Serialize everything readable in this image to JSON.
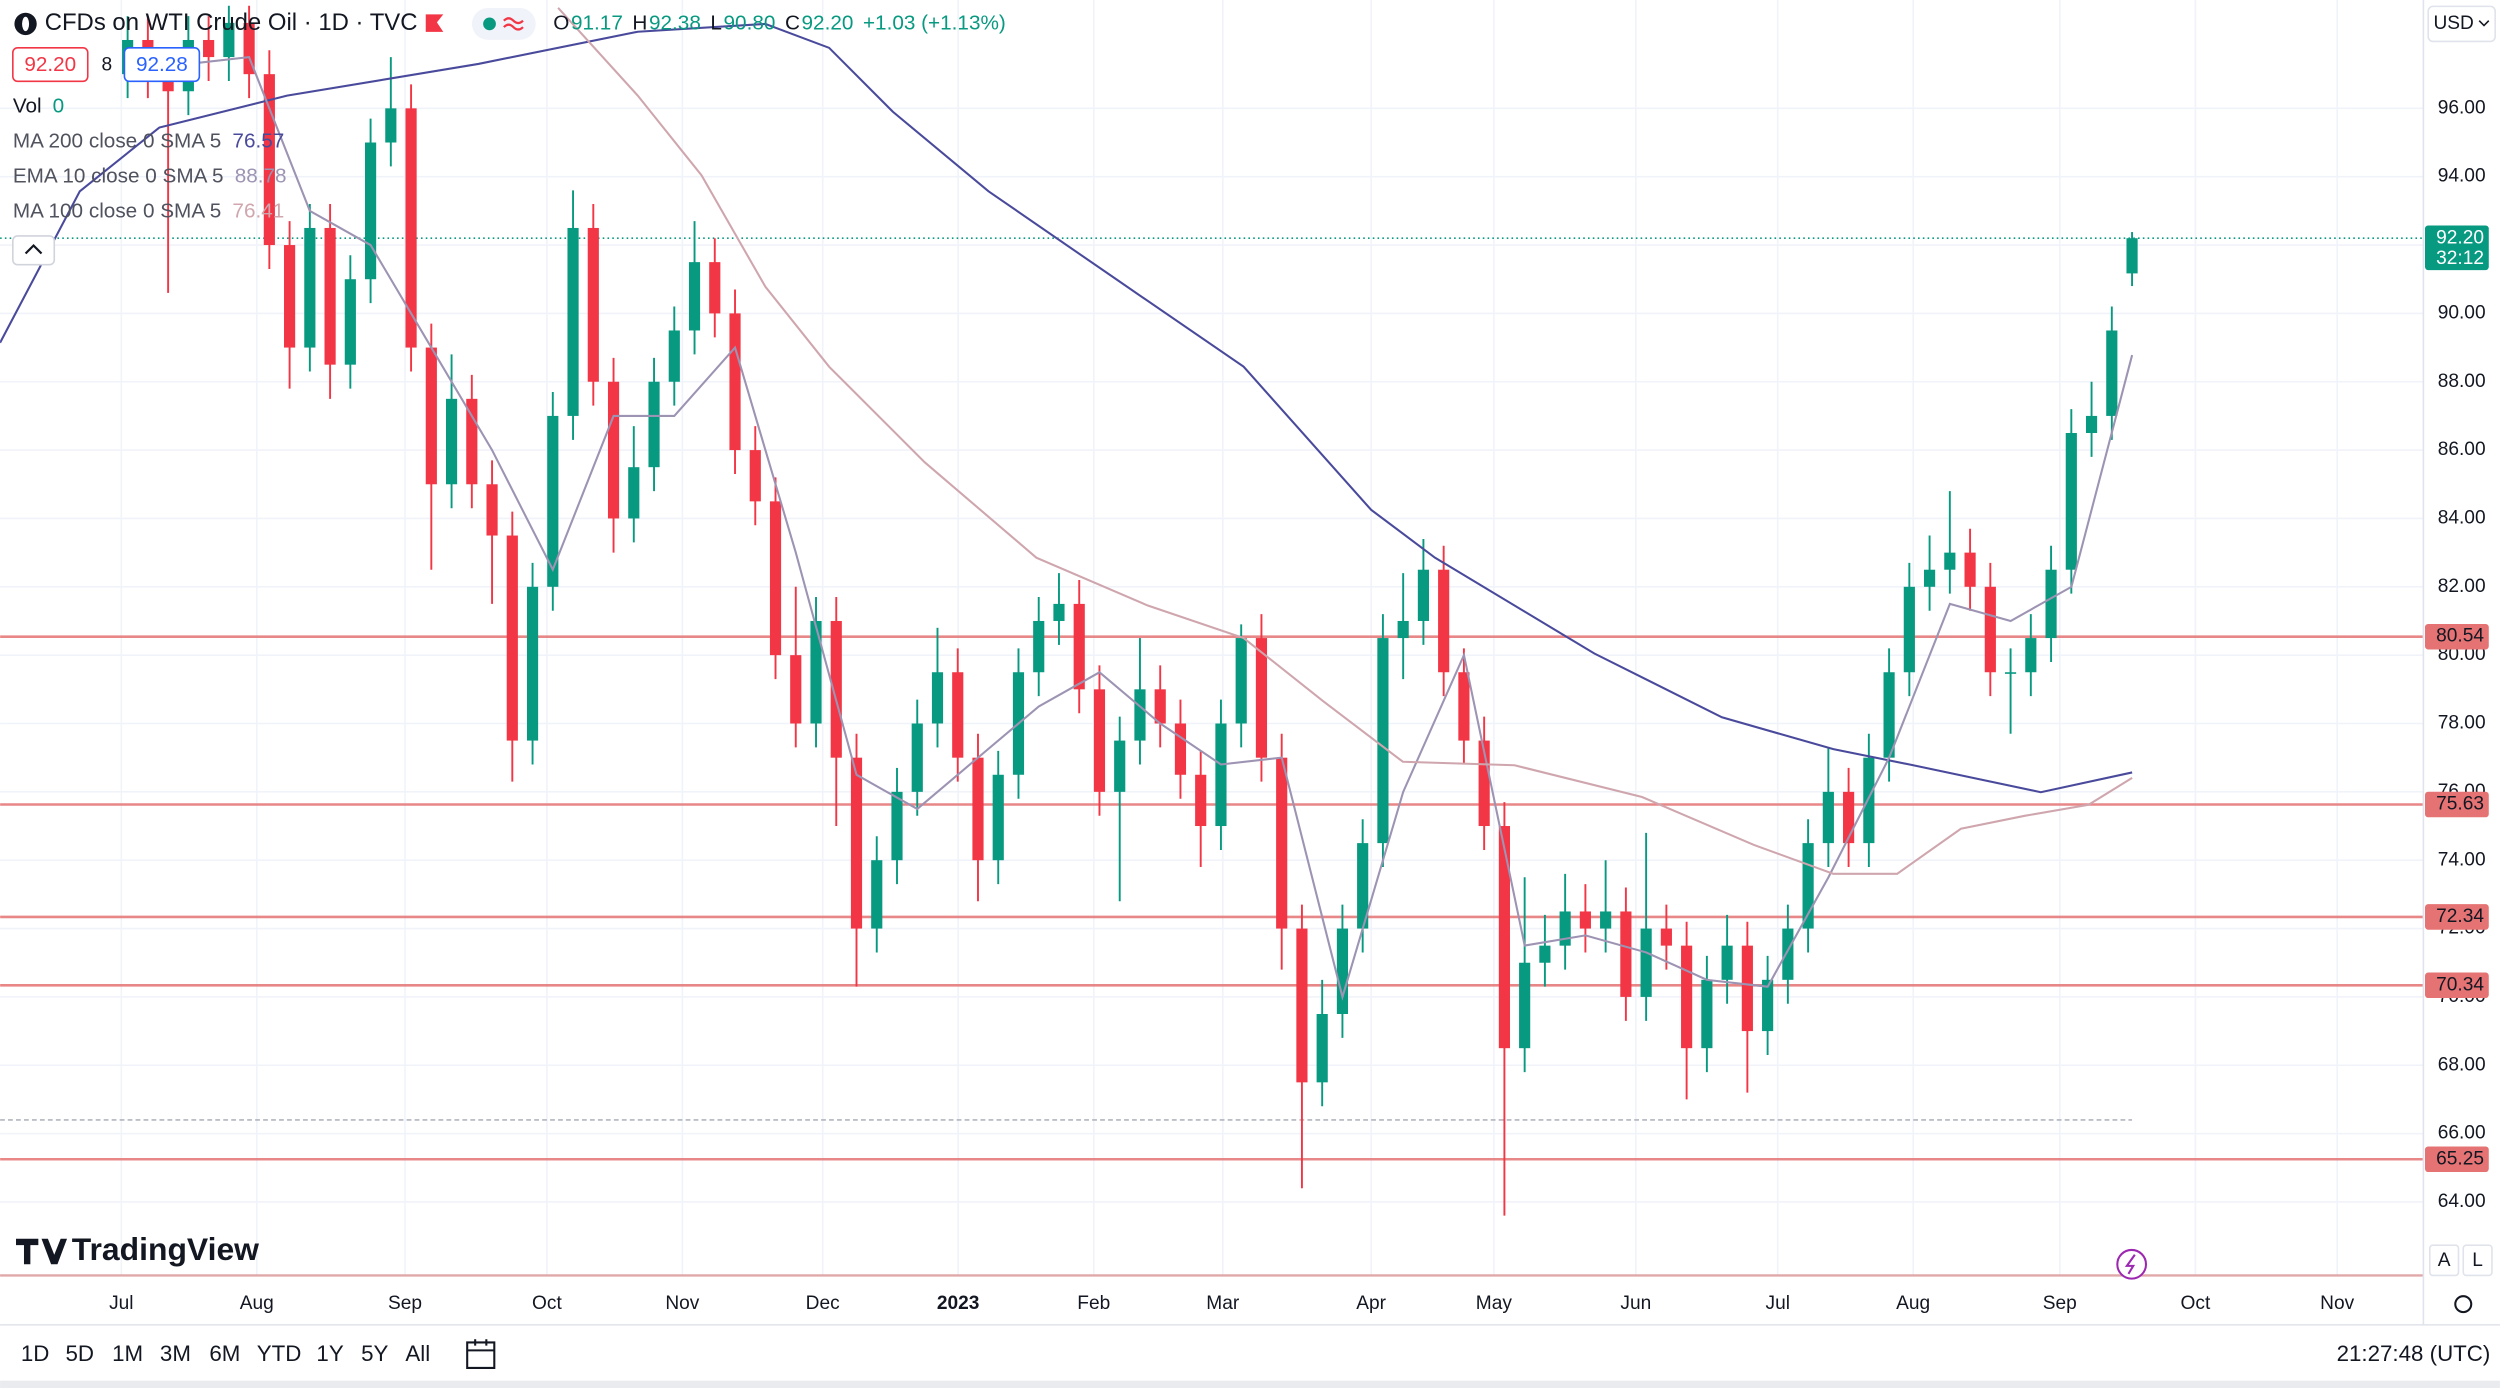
{
  "header": {
    "symbol": "CFDs on WTI Crude Oil · 1D · TVC",
    "ohlc": [
      {
        "key": "O",
        "text": "91.17"
      },
      {
        "key": "H",
        "text": "92.38"
      },
      {
        "key": "L",
        "text": "90.80"
      },
      {
        "key": "C",
        "text": "92.20"
      }
    ],
    "change": "+1.03 (+1.13%)",
    "bid": "92.20",
    "spread": "8",
    "ask": "92.28",
    "volume": {
      "label": "Vol",
      "value": "0"
    },
    "currency": "USD"
  },
  "chart_data": {
    "type": "candlestick",
    "xlim": [
      -6.3,
      113.39
    ],
    "xticks": [
      {
        "value": -0.31,
        "label": "Jul"
      },
      {
        "value": 6.38,
        "label": "Aug"
      },
      {
        "value": 13.7,
        "label": "Sep"
      },
      {
        "value": 20.71,
        "label": "Oct"
      },
      {
        "value": 27.4,
        "label": "Nov"
      },
      {
        "value": 34.33,
        "label": "Dec"
      },
      {
        "value": 41.02,
        "label": "2023"
      },
      {
        "value": 47.72,
        "label": "Feb"
      },
      {
        "value": 54.09,
        "label": "Mar"
      },
      {
        "value": 61.42,
        "label": "Apr"
      },
      {
        "value": 67.48,
        "label": "May"
      },
      {
        "value": 74.49,
        "label": "Jun"
      },
      {
        "value": 81.5,
        "label": "Jul"
      },
      {
        "value": 88.19,
        "label": "Aug"
      },
      {
        "value": 95.43,
        "label": "Sep"
      },
      {
        "value": 102.13,
        "label": "Oct"
      },
      {
        "value": 109.13,
        "label": "Nov"
      }
    ],
    "ylim": [
      61.85,
      99.17
    ],
    "yticks": [
      {
        "value": 64,
        "label": "64.00"
      },
      {
        "value": 66,
        "label": "66.00"
      },
      {
        "value": 68,
        "label": "68.00"
      },
      {
        "value": 70,
        "label": "70.00"
      },
      {
        "value": 72,
        "label": "72.00"
      },
      {
        "value": 74,
        "label": "74.00"
      },
      {
        "value": 76,
        "label": "76.00"
      },
      {
        "value": 78,
        "label": "78.00"
      },
      {
        "value": 80,
        "label": "80.00"
      },
      {
        "value": 82,
        "label": "82.00"
      },
      {
        "value": 84,
        "label": "84.00"
      },
      {
        "value": 86,
        "label": "86.00"
      },
      {
        "value": 88,
        "label": "88.00"
      },
      {
        "value": 90,
        "label": "90.00"
      },
      {
        "value": 92,
        "label": "92.00"
      },
      {
        "value": 94,
        "label": "94.00"
      },
      {
        "value": 96,
        "label": "96.00"
      }
    ],
    "grid": true,
    "up_color": "#089981",
    "down_color": "#f23645",
    "candles": {
      "open": [
        97,
        98,
        97,
        96.5,
        98,
        97.5,
        98.5,
        97,
        92,
        89,
        92.5,
        88.5,
        91,
        95,
        96,
        89,
        85,
        87.5,
        85,
        83.5,
        77.5,
        82,
        87,
        92.5,
        88,
        84,
        85.5,
        88,
        89.5,
        91.5,
        90,
        86,
        84.5,
        80,
        78,
        81,
        77,
        72,
        74,
        76,
        78,
        79.5,
        77,
        74,
        76.5,
        79.5,
        81,
        81.5,
        79,
        76,
        77.5,
        79,
        78,
        76.5,
        75,
        78,
        80.5,
        77,
        72,
        67.5,
        69.5,
        72,
        74.5,
        80.5,
        81,
        82.5,
        79.5,
        77.5,
        75,
        68.5,
        71,
        71.5,
        72.5,
        72,
        72.5,
        70,
        72,
        71.5,
        68.5,
        70.5,
        71.5,
        69,
        70.5,
        72,
        74.5,
        76,
        74.5,
        77,
        79.5,
        82,
        82.5,
        83,
        82,
        79.5,
        79.5,
        80.5,
        82.5,
        86.5,
        87,
        91.17
      ],
      "high": [
        98.7,
        98.7,
        97.7,
        98.7,
        98.7,
        99.0,
        99.0,
        97.7,
        92.7,
        93.2,
        93.2,
        91.7,
        95.7,
        97.5,
        96.7,
        89.7,
        88.8,
        88.2,
        85.7,
        84.2,
        82.7,
        87.7,
        93.6,
        93.2,
        88.7,
        86.7,
        88.7,
        90.2,
        92.7,
        92.2,
        90.7,
        86.7,
        85.2,
        82.0,
        81.7,
        81.7,
        77.7,
        74.7,
        76.7,
        78.7,
        80.8,
        80.2,
        77.7,
        77.2,
        80.2,
        81.7,
        82.4,
        82.2,
        79.7,
        78.2,
        80.5,
        79.7,
        78.7,
        77.2,
        78.7,
        80.9,
        81.2,
        77.7,
        72.7,
        70.5,
        72.7,
        75.2,
        81.2,
        82.4,
        83.4,
        83.2,
        80.2,
        78.2,
        75.7,
        73.5,
        72.4,
        73.6,
        73.3,
        74.0,
        73.2,
        74.8,
        72.7,
        72.2,
        71.2,
        72.4,
        72.2,
        71.2,
        72.7,
        75.2,
        77.3,
        76.7,
        77.7,
        80.2,
        82.7,
        83.5,
        84.8,
        83.7,
        82.7,
        80.2,
        81.2,
        83.2,
        87.2,
        88.0,
        90.2,
        92.38
      ],
      "low": [
        96.3,
        96.3,
        90.6,
        95.8,
        96.8,
        96.8,
        96.3,
        91.3,
        87.8,
        88.3,
        87.5,
        87.8,
        90.3,
        94.3,
        88.3,
        82.5,
        84.3,
        84.3,
        81.5,
        76.3,
        76.8,
        81.3,
        86.3,
        87.3,
        83.0,
        83.3,
        84.8,
        87.3,
        88.8,
        89.3,
        85.3,
        83.8,
        79.3,
        77.3,
        77.3,
        75.0,
        70.3,
        71.3,
        73.3,
        75.3,
        77.3,
        76.3,
        72.8,
        73.3,
        75.8,
        78.8,
        80.3,
        78.3,
        75.3,
        72.8,
        76.8,
        77.3,
        75.8,
        73.8,
        74.3,
        77.3,
        76.3,
        70.8,
        64.4,
        66.8,
        68.8,
        71.3,
        73.8,
        79.3,
        80.3,
        78.8,
        76.8,
        74.3,
        63.6,
        67.8,
        70.3,
        70.8,
        71.3,
        71.3,
        69.3,
        69.3,
        70.8,
        67.0,
        67.8,
        69.8,
        67.2,
        68.3,
        69.8,
        71.3,
        73.8,
        73.8,
        73.8,
        76.3,
        78.8,
        81.3,
        81.8,
        81.3,
        78.8,
        77.7,
        78.8,
        79.8,
        81.8,
        85.8,
        86.3,
        90.8
      ],
      "close": [
        98,
        97,
        96.5,
        98,
        97.5,
        98.5,
        97,
        92,
        89,
        92.5,
        88.5,
        91,
        95,
        96,
        89,
        85,
        87.5,
        85,
        83.5,
        77.5,
        82,
        87,
        92.5,
        88,
        84,
        85.5,
        88,
        89.5,
        91.5,
        90,
        86,
        84.5,
        80,
        78,
        81,
        77,
        72,
        74,
        76,
        78,
        79.5,
        77,
        74,
        76.5,
        79.5,
        81,
        81.5,
        79,
        76,
        77.5,
        79,
        78,
        76.5,
        75,
        78,
        80.5,
        77,
        72,
        67.5,
        69.5,
        72,
        74.5,
        80.5,
        81,
        82.5,
        79.5,
        77.5,
        75,
        68.5,
        71,
        71.5,
        72.5,
        72,
        72.5,
        70,
        72,
        71.5,
        68.5,
        70.5,
        71.5,
        69,
        70.5,
        72,
        74.5,
        76,
        74.5,
        77,
        79.5,
        82,
        82.5,
        83,
        82,
        79.5,
        79.5,
        80.5,
        82.5,
        86.5,
        87,
        89.5,
        92.2
      ]
    },
    "lines": [
      {
        "name": "MA 200 close 0 SMA 5",
        "color": "#4a4a9c",
        "legend_value": 76.57,
        "x": [
          -6.3,
          -2.36,
          1.57,
          7.87,
          17.32,
          25.2,
          31.5,
          34.65,
          37.8,
          42.52,
          48.82,
          55.12,
          61.42,
          64.57,
          72.44,
          78.74,
          84.25,
          88.19,
          94.49,
          99
        ],
        "values": [
          89.14,
          93.57,
          95.44,
          96.37,
          97.3,
          98.24,
          98.47,
          97.77,
          95.9,
          93.57,
          91.0,
          88.44,
          84.25,
          82.85,
          80.05,
          78.18,
          77.25,
          76.78,
          75.99,
          76.57
        ]
      },
      {
        "name": "EMA 10 close 0 SMA 5",
        "color": "#9d93b3",
        "legend_value": 88.78,
        "x": [
          0,
          3,
          6,
          9,
          12,
          15,
          18,
          21,
          24,
          27,
          30,
          33,
          36,
          39,
          42,
          45,
          48,
          51,
          54,
          57,
          60,
          63,
          66,
          69,
          72,
          75,
          78,
          81,
          84,
          87,
          90,
          93,
          96,
          99
        ],
        "values": [
          97.5,
          97.3,
          97.5,
          93,
          92,
          89,
          86,
          82.5,
          87,
          87,
          89,
          83,
          76.5,
          75.5,
          77,
          78.5,
          79.5,
          78,
          76.8,
          77,
          70,
          76,
          80,
          71.5,
          71.8,
          71.3,
          70.5,
          70.3,
          73.5,
          77,
          81.5,
          81,
          82,
          88.78
        ]
      },
      {
        "name": "MA 100 close 0 SMA 5",
        "color": "#cfa6ae",
        "legend_value": 76.41,
        "x": [
          21.26,
          25.2,
          28.35,
          31.5,
          34.65,
          39.37,
          44.88,
          50.39,
          55.12,
          59.06,
          62.99,
          68.5,
          74.8,
          80.31,
          84.25,
          87.4,
          90.55,
          93.7,
          96.85,
          99
        ],
        "values": [
          98.94,
          96.37,
          94.04,
          90.78,
          88.44,
          85.64,
          82.85,
          81.45,
          80.5,
          78.65,
          76.88,
          76.78,
          75.85,
          74.45,
          73.6,
          73.6,
          74.92,
          75.3,
          75.62,
          76.41
        ]
      }
    ],
    "levels": [
      80.54,
      75.63,
      72.34,
      70.34,
      65.25
    ],
    "level_color": "#e57373",
    "dashed_line": 66.4,
    "price_line": {
      "value": 92.2,
      "label": "92.20",
      "countdown": "32:12"
    }
  },
  "footer": {
    "logo": "TradingView",
    "timeframes": [
      "1D",
      "5D",
      "1M",
      "3M",
      "6M",
      "YTD",
      "1Y",
      "5Y",
      "All"
    ],
    "clock": "21:27:48 (UTC)",
    "scale_buttons": [
      "A",
      "L"
    ]
  }
}
